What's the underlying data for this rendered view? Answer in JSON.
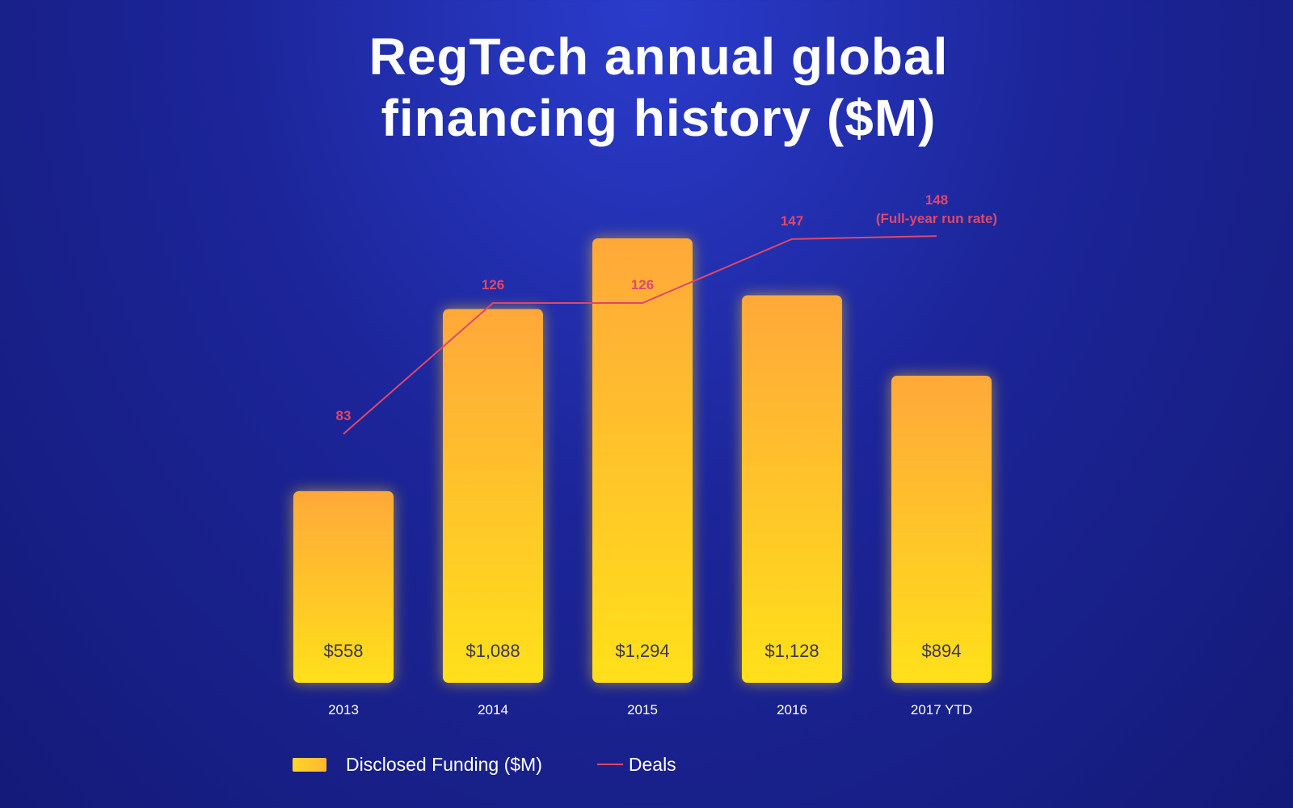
{
  "chart_data": {
    "type": "bar",
    "title": [
      "RegTech annual global",
      "financing history ($M)"
    ],
    "categories": [
      "2013",
      "2014",
      "2015",
      "2016",
      "2017 YTD"
    ],
    "series": [
      {
        "name": "Disclosed Funding ($M)",
        "type": "bar",
        "values": [
          558,
          1088,
          1294,
          1128,
          894
        ],
        "value_labels": [
          "$558",
          "$1,088",
          "$1,294",
          "$1,128",
          "$894"
        ]
      },
      {
        "name": "Deals",
        "type": "line",
        "values": [
          83,
          126,
          126,
          147,
          148
        ],
        "value_labels": [
          "83",
          "126",
          "126",
          "147",
          "148"
        ],
        "annotation": "(Full-year run rate)"
      }
    ],
    "axes_visible": false,
    "grid": false,
    "legend_position": "bottom-left",
    "colors": {
      "bar_top": "#ffa83a",
      "bar_bottom": "#ffe01a",
      "line": "#e0476a",
      "text": "#ffffff",
      "bar_label": "#3a3552"
    }
  },
  "legend": {
    "bar_label": "Disclosed Funding ($M)",
    "line_label": "Deals"
  }
}
